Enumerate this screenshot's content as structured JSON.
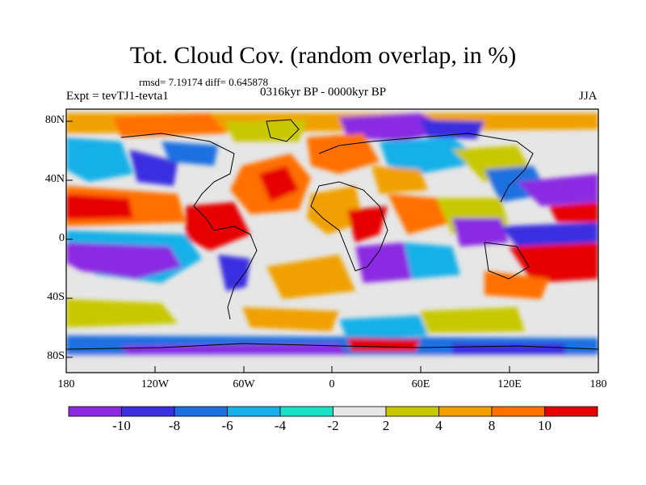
{
  "title": "Tot. Cloud Cov. (random overlap, in %)",
  "stats_line": "rmsd= 7.19174 diff= 0.645878",
  "subtitle": "0316kyr BP - 0000kyr BP",
  "experiment": "Expt = tevTJ1-tevta1",
  "season": "JJA",
  "lat_ticks": [
    "80N",
    "40N",
    "0",
    "40S",
    "80S"
  ],
  "lon_ticks": [
    "180",
    "120W",
    "60W",
    "0",
    "60E",
    "120E",
    "180"
  ],
  "colorbar": {
    "labels": [
      "-10",
      "-8",
      "-6",
      "-4",
      "-2",
      "2",
      "4",
      "8",
      "10"
    ],
    "colors": [
      "#8a2be2",
      "#3b2fe0",
      "#1f6fe0",
      "#19b0e8",
      "#18e0c4",
      "#e6e6e6",
      "#c8c800",
      "#f0a000",
      "#ff7000",
      "#e60000"
    ]
  },
  "colors": {
    "land_outline": "#000000",
    "ocean_neutral": "#e6e6e6"
  }
}
